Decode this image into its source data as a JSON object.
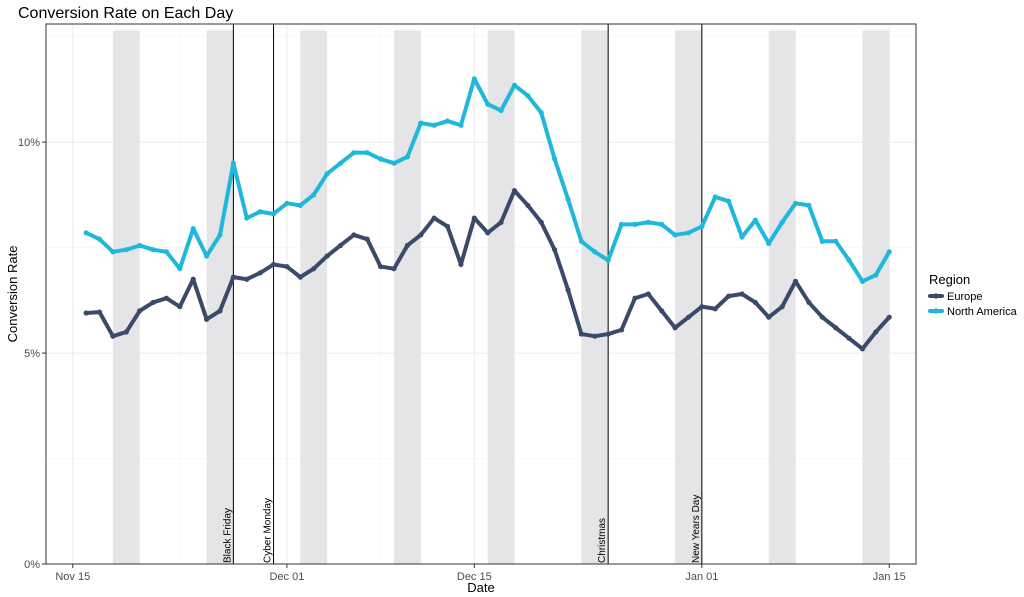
{
  "chart_data": {
    "type": "line",
    "title": "Conversion Rate on Each Day",
    "xlabel": "Date",
    "ylabel": "Conversion Rate",
    "x_axis_type": "date",
    "xlim": [
      "2015-11-13",
      "2016-01-17"
    ],
    "ylim": [
      0,
      12.8
    ],
    "x_ticks": [
      {
        "date": "2015-11-15",
        "label": "Nov 15"
      },
      {
        "date": "2015-12-01",
        "label": "Dec 01"
      },
      {
        "date": "2015-12-15",
        "label": "Dec 15"
      },
      {
        "date": "2016-01-01",
        "label": "Jan 01"
      },
      {
        "date": "2016-01-15",
        "label": "Jan 15"
      }
    ],
    "y_ticks": [
      {
        "value": 0,
        "label": "0%"
      },
      {
        "value": 5,
        "label": "5%"
      },
      {
        "value": 10,
        "label": "10%"
      }
    ],
    "grid": true,
    "weekend_bands": [
      [
        "2015-11-18",
        "2015-11-20"
      ],
      [
        "2015-11-25",
        "2015-11-27"
      ],
      [
        "2015-12-02",
        "2015-12-04"
      ],
      [
        "2015-12-09",
        "2015-12-11"
      ],
      [
        "2015-12-16",
        "2015-12-18"
      ],
      [
        "2015-12-23",
        "2015-12-25"
      ],
      [
        "2015-12-30",
        "2016-01-01"
      ],
      [
        "2016-01-06",
        "2016-01-08"
      ],
      [
        "2016-01-13",
        "2016-01-15"
      ]
    ],
    "events": [
      {
        "date": "2015-11-27",
        "label": "Black Friday"
      },
      {
        "date": "2015-11-30",
        "label": "Cyber Monday"
      },
      {
        "date": "2015-12-25",
        "label": "Christmas"
      },
      {
        "date": "2016-01-01",
        "label": "New Years Day"
      }
    ],
    "x": [
      "2015-11-16",
      "2015-11-17",
      "2015-11-18",
      "2015-11-19",
      "2015-11-20",
      "2015-11-21",
      "2015-11-22",
      "2015-11-23",
      "2015-11-24",
      "2015-11-25",
      "2015-11-26",
      "2015-11-27",
      "2015-11-28",
      "2015-11-29",
      "2015-11-30",
      "2015-12-01",
      "2015-12-02",
      "2015-12-03",
      "2015-12-04",
      "2015-12-05",
      "2015-12-06",
      "2015-12-07",
      "2015-12-08",
      "2015-12-09",
      "2015-12-10",
      "2015-12-11",
      "2015-12-12",
      "2015-12-13",
      "2015-12-14",
      "2015-12-15",
      "2015-12-16",
      "2015-12-17",
      "2015-12-18",
      "2015-12-19",
      "2015-12-20",
      "2015-12-21",
      "2015-12-22",
      "2015-12-23",
      "2015-12-24",
      "2015-12-25",
      "2015-12-26",
      "2015-12-27",
      "2015-12-28",
      "2015-12-29",
      "2015-12-30",
      "2015-12-31",
      "2016-01-01",
      "2016-01-02",
      "2016-01-03",
      "2016-01-04",
      "2016-01-05",
      "2016-01-06",
      "2016-01-07",
      "2016-01-08",
      "2016-01-09",
      "2016-01-10",
      "2016-01-11",
      "2016-01-12",
      "2016-01-13",
      "2016-01-14",
      "2016-01-15"
    ],
    "series": [
      {
        "name": "Europe",
        "color": "#3b4a6b",
        "values": [
          5.95,
          5.97,
          5.4,
          5.5,
          6.0,
          6.2,
          6.3,
          6.1,
          6.75,
          5.8,
          6.0,
          6.8,
          6.75,
          6.9,
          7.1,
          7.05,
          6.8,
          7.0,
          7.3,
          7.55,
          7.8,
          7.7,
          7.05,
          7.0,
          7.55,
          7.8,
          8.2,
          8.0,
          7.1,
          8.2,
          7.85,
          8.1,
          8.85,
          8.5,
          8.1,
          7.45,
          6.5,
          5.45,
          5.4,
          5.45,
          5.55,
          6.3,
          6.4,
          6.0,
          5.6,
          5.85,
          6.1,
          6.05,
          6.35,
          6.4,
          6.2,
          5.85,
          6.1,
          6.7,
          6.2,
          5.85,
          5.6,
          5.35,
          5.1,
          5.5,
          5.85
        ]
      },
      {
        "name": "North America",
        "color": "#1fb7dc",
        "values": [
          7.85,
          7.7,
          7.4,
          7.45,
          7.55,
          7.45,
          7.4,
          7.0,
          7.95,
          7.3,
          7.8,
          9.5,
          8.2,
          8.35,
          8.3,
          8.55,
          8.5,
          8.75,
          9.25,
          9.5,
          9.75,
          9.75,
          9.6,
          9.5,
          9.65,
          10.45,
          10.4,
          10.5,
          10.4,
          11.5,
          10.9,
          10.75,
          11.35,
          11.1,
          10.7,
          9.6,
          8.65,
          7.65,
          7.4,
          7.2,
          8.05,
          8.05,
          8.1,
          8.05,
          7.8,
          7.85,
          8.0,
          8.7,
          8.6,
          7.75,
          8.15,
          7.6,
          8.1,
          8.55,
          8.5,
          7.65,
          7.65,
          7.2,
          6.7,
          6.85,
          7.4
        ]
      }
    ],
    "legend": {
      "title": "Region",
      "placement": "right",
      "items": [
        "Europe",
        "North America"
      ]
    }
  }
}
